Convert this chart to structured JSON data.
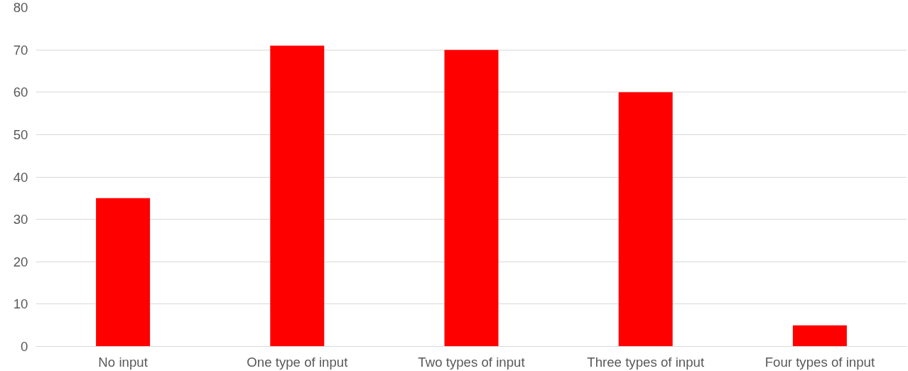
{
  "chart_data": {
    "type": "bar",
    "categories": [
      "No input",
      "One type of input",
      "Two types of input",
      "Three types of input",
      "Four types of input"
    ],
    "values": [
      35,
      71,
      70,
      60,
      5
    ],
    "color": "#ff0000",
    "ylim": [
      0,
      80
    ],
    "yticks": [
      0,
      10,
      20,
      30,
      40,
      50,
      60,
      70,
      80
    ],
    "grid": "y"
  }
}
